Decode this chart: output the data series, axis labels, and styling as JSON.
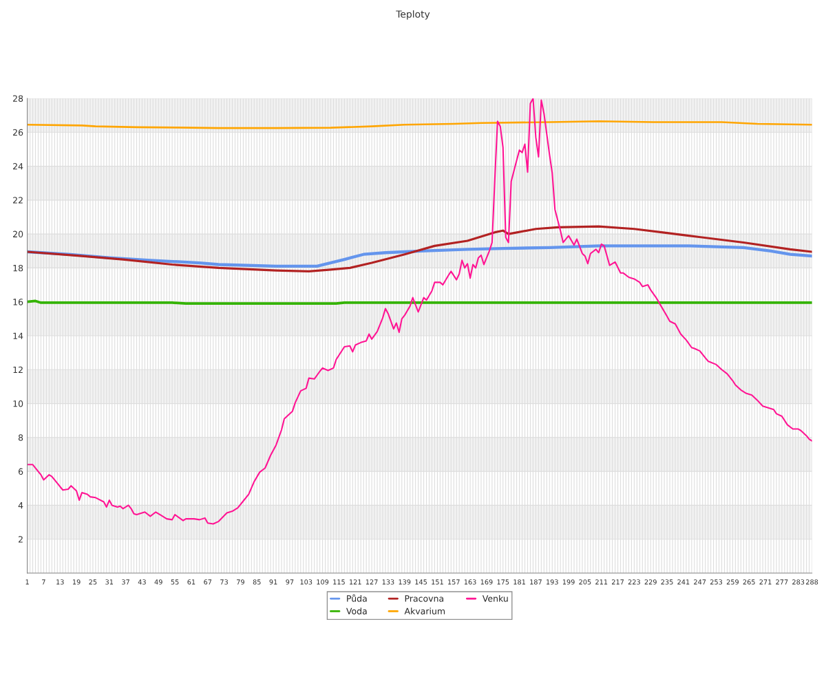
{
  "chart_data": {
    "type": "line",
    "title": "Teploty",
    "xlim": [
      1,
      288
    ],
    "xticks": [
      1,
      {
        "value": 2,
        "label": null
      },
      {
        "value": 3,
        "label": null
      },
      {
        "value": 4,
        "label": null
      },
      {
        "value": 5,
        "label": null
      },
      {
        "value": 6,
        "label": null
      },
      7,
      {
        "value": 8,
        "label": null
      },
      {
        "value": 9,
        "label": null
      },
      {
        "value": 10,
        "label": null
      },
      {
        "value": 11,
        "label": null
      },
      {
        "value": 12,
        "label": null
      },
      13,
      {
        "value": 14,
        "label": null
      },
      {
        "value": 15,
        "label": null
      },
      {
        "value": 16,
        "label": null
      },
      {
        "value": 17,
        "label": null
      },
      {
        "value": 18,
        "label": null
      },
      19,
      {
        "value": 20,
        "label": null
      },
      {
        "value": 21,
        "label": null
      },
      {
        "value": 22,
        "label": null
      },
      {
        "value": 23,
        "label": null
      },
      {
        "value": 24,
        "label": null
      },
      25,
      {
        "value": 26,
        "label": null
      },
      {
        "value": 27,
        "label": null
      },
      {
        "value": 28,
        "label": null
      },
      {
        "value": 29,
        "label": null
      },
      {
        "value": 30,
        "label": null
      },
      31,
      {
        "value": 32,
        "label": null
      },
      {
        "value": 33,
        "label": null
      },
      {
        "value": 34,
        "label": null
      },
      {
        "value": 35,
        "label": null
      },
      {
        "value": 36,
        "label": null
      },
      37,
      {
        "value": 38,
        "label": null
      },
      {
        "value": 39,
        "label": null
      },
      {
        "value": 40,
        "label": null
      },
      {
        "value": 41,
        "label": null
      },
      {
        "value": 42,
        "label": null
      },
      43,
      {
        "value": 44,
        "label": null
      },
      {
        "value": 45,
        "label": null
      },
      {
        "value": 46,
        "label": null
      },
      {
        "value": 47,
        "label": null
      },
      {
        "value": 48,
        "label": null
      },
      49,
      {
        "value": 50,
        "label": null
      },
      {
        "value": 51,
        "label": null
      },
      {
        "value": 52,
        "label": null
      },
      {
        "value": 53,
        "label": null
      },
      {
        "value": 54,
        "label": null
      },
      55,
      {
        "value": 56,
        "label": null
      },
      {
        "value": 57,
        "label": null
      },
      {
        "value": 58,
        "label": null
      },
      {
        "value": 59,
        "label": null
      },
      {
        "value": 60,
        "label": null
      },
      61,
      {
        "value": 62,
        "label": null
      },
      {
        "value": 63,
        "label": null
      },
      {
        "value": 64,
        "label": null
      },
      {
        "value": 65,
        "label": null
      },
      {
        "value": 66,
        "label": null
      },
      67,
      {
        "value": 68,
        "label": null
      },
      {
        "value": 69,
        "label": null
      },
      {
        "value": 70,
        "label": null
      },
      {
        "value": 71,
        "label": null
      },
      {
        "value": 72,
        "label": null
      },
      73,
      {
        "value": 74,
        "label": null
      },
      {
        "value": 75,
        "label": null
      },
      {
        "value": 76,
        "label": null
      },
      {
        "value": 77,
        "label": null
      },
      {
        "value": 78,
        "label": null
      },
      79,
      {
        "value": 80,
        "label": null
      },
      {
        "value": 81,
        "label": null
      },
      {
        "value": 82,
        "label": null
      },
      {
        "value": 83,
        "label": null
      },
      {
        "value": 84,
        "label": null
      },
      85,
      {
        "value": 86,
        "label": null
      },
      {
        "value": 87,
        "label": null
      },
      {
        "value": 88,
        "label": null
      },
      {
        "value": 89,
        "label": null
      },
      {
        "value": 90,
        "label": null
      },
      91,
      {
        "value": 92,
        "label": null
      },
      {
        "value": 93,
        "label": null
      },
      {
        "value": 94,
        "label": null
      },
      {
        "value": 95,
        "label": null
      },
      {
        "value": 96,
        "label": null
      },
      97,
      {
        "value": 98,
        "label": null
      },
      {
        "value": 99,
        "label": null
      },
      {
        "value": 100,
        "label": null
      },
      {
        "value": 101,
        "label": null
      },
      {
        "value": 102,
        "label": null
      },
      103,
      {
        "value": 104,
        "label": null
      },
      {
        "value": 105,
        "label": null
      },
      {
        "value": 106,
        "label": null
      },
      {
        "value": 107,
        "label": null
      },
      {
        "value": 108,
        "label": null
      },
      109,
      {
        "value": 110,
        "label": null
      },
      {
        "value": 111,
        "label": null
      },
      {
        "value": 112,
        "label": null
      },
      {
        "value": 113,
        "label": null
      },
      {
        "value": 114,
        "label": null
      },
      115,
      {
        "value": 116,
        "label": null
      },
      {
        "value": 117,
        "label": null
      },
      {
        "value": 118,
        "label": null
      },
      {
        "value": 119,
        "label": null
      },
      {
        "value": 120,
        "label": null
      },
      121,
      {
        "value": 122,
        "label": null
      },
      {
        "value": 123,
        "label": null
      },
      {
        "value": 124,
        "label": null
      },
      {
        "value": 125,
        "label": null
      },
      {
        "value": 126,
        "label": null
      },
      127,
      {
        "value": 128,
        "label": null
      },
      {
        "value": 129,
        "label": null
      },
      {
        "value": 130,
        "label": null
      },
      {
        "value": 131,
        "label": null
      },
      {
        "value": 132,
        "label": null
      },
      133,
      {
        "value": 134,
        "label": null
      },
      {
        "value": 135,
        "label": null
      },
      {
        "value": 136,
        "label": null
      },
      {
        "value": 137,
        "label": null
      },
      {
        "value": 138,
        "label": null
      },
      139,
      {
        "value": 140,
        "label": null
      },
      {
        "value": 141,
        "label": null
      },
      {
        "value": 142,
        "label": null
      },
      {
        "value": 143,
        "label": null
      },
      {
        "value": 144,
        "label": null
      },
      145,
      {
        "value": 146,
        "label": null
      },
      {
        "value": 147,
        "label": null
      },
      {
        "value": 148,
        "label": null
      },
      {
        "value": 149,
        "label": null
      },
      {
        "value": 150,
        "label": null
      },
      151,
      {
        "value": 152,
        "label": null
      },
      {
        "value": 153,
        "label": null
      },
      {
        "value": 154,
        "label": null
      },
      {
        "value": 155,
        "label": null
      },
      {
        "value": 156,
        "label": null
      },
      157,
      {
        "value": 158,
        "label": null
      },
      {
        "value": 159,
        "label": null
      },
      {
        "value": 160,
        "label": null
      },
      {
        "value": 161,
        "label": null
      },
      {
        "value": 162,
        "label": null
      },
      163,
      {
        "value": 164,
        "label": null
      },
      {
        "value": 165,
        "label": null
      },
      {
        "value": 166,
        "label": null
      },
      {
        "value": 167,
        "label": null
      },
      {
        "value": 168,
        "label": null
      },
      169,
      {
        "value": 170,
        "label": null
      },
      {
        "value": 171,
        "label": null
      },
      {
        "value": 172,
        "label": null
      },
      {
        "value": 173,
        "label": null
      },
      {
        "value": 174,
        "label": null
      },
      175,
      {
        "value": 176,
        "label": null
      },
      {
        "value": 177,
        "label": null
      },
      {
        "value": 178,
        "label": null
      },
      {
        "value": 179,
        "label": null
      },
      {
        "value": 180,
        "label": null
      },
      181,
      {
        "value": 182,
        "label": null
      },
      {
        "value": 183,
        "label": null
      },
      {
        "value": 184,
        "label": null
      },
      {
        "value": 185,
        "label": null
      },
      {
        "value": 186,
        "label": null
      },
      187,
      {
        "value": 188,
        "label": null
      },
      {
        "value": 189,
        "label": null
      },
      {
        "value": 190,
        "label": null
      },
      {
        "value": 191,
        "label": null
      },
      {
        "value": 192,
        "label": null
      },
      193,
      {
        "value": 194,
        "label": null
      },
      {
        "value": 195,
        "label": null
      },
      {
        "value": 196,
        "label": null
      },
      {
        "value": 197,
        "label": null
      },
      {
        "value": 198,
        "label": null
      },
      199,
      {
        "value": 200,
        "label": null
      },
      {
        "value": 201,
        "label": null
      },
      {
        "value": 202,
        "label": null
      },
      {
        "value": 203,
        "label": null
      },
      {
        "value": 204,
        "label": null
      },
      205,
      {
        "value": 206,
        "label": null
      },
      {
        "value": 207,
        "label": null
      },
      {
        "value": 208,
        "label": null
      },
      {
        "value": 209,
        "label": null
      },
      {
        "value": 210,
        "label": null
      },
      211,
      {
        "value": 212,
        "label": null
      },
      {
        "value": 213,
        "label": null
      },
      {
        "value": 214,
        "label": null
      },
      {
        "value": 215,
        "label": null
      },
      {
        "value": 216,
        "label": null
      },
      217,
      {
        "value": 218,
        "label": null
      },
      {
        "value": 219,
        "label": null
      },
      {
        "value": 220,
        "label": null
      },
      {
        "value": 221,
        "label": null
      },
      {
        "value": 222,
        "label": null
      },
      223,
      {
        "value": 224,
        "label": null
      },
      {
        "value": 225,
        "label": null
      },
      {
        "value": 226,
        "label": null
      },
      {
        "value": 227,
        "label": null
      },
      {
        "value": 228,
        "label": null
      },
      229,
      {
        "value": 230,
        "label": null
      },
      {
        "value": 231,
        "label": null
      },
      {
        "value": 232,
        "label": null
      },
      {
        "value": 233,
        "label": null
      },
      {
        "value": 234,
        "label": null
      },
      235,
      {
        "value": 236,
        "label": null
      },
      {
        "value": 237,
        "label": null
      },
      {
        "value": 238,
        "label": null
      },
      {
        "value": 239,
        "label": null
      },
      {
        "value": 240,
        "label": null
      },
      241,
      {
        "value": 242,
        "label": null
      },
      {
        "value": 243,
        "label": null
      },
      {
        "value": 244,
        "label": null
      },
      {
        "value": 245,
        "label": null
      },
      {
        "value": 246,
        "label": null
      },
      247,
      {
        "value": 248,
        "label": null
      },
      {
        "value": 249,
        "label": null
      },
      {
        "value": 250,
        "label": null
      },
      {
        "value": 251,
        "label": null
      },
      {
        "value": 252,
        "label": null
      },
      253,
      {
        "value": 254,
        "label": null
      },
      {
        "value": 255,
        "label": null
      },
      {
        "value": 256,
        "label": null
      },
      {
        "value": 257,
        "label": null
      },
      {
        "value": 258,
        "label": null
      },
      259,
      {
        "value": 260,
        "label": null
      },
      {
        "value": 261,
        "label": null
      },
      {
        "value": 262,
        "label": null
      },
      {
        "value": 263,
        "label": null
      },
      {
        "value": 264,
        "label": null
      },
      265,
      {
        "value": 266,
        "label": null
      },
      {
        "value": 267,
        "label": null
      },
      {
        "value": 268,
        "label": null
      },
      {
        "value": 269,
        "label": null
      },
      {
        "value": 270,
        "label": null
      },
      271,
      {
        "value": 272,
        "label": null
      },
      {
        "value": 273,
        "label": null
      },
      {
        "value": 274,
        "label": null
      },
      {
        "value": 275,
        "label": null
      },
      {
        "value": 276,
        "label": null
      },
      277,
      {
        "value": 278,
        "label": null
      },
      {
        "value": 279,
        "label": null
      },
      {
        "value": 280,
        "label": null
      },
      {
        "value": 281,
        "label": null
      },
      {
        "value": 282,
        "label": null
      },
      283,
      {
        "value": 284,
        "label": null
      },
      {
        "value": 285,
        "label": null
      },
      {
        "value": 286,
        "label": null
      },
      {
        "value": 287,
        "label": null
      },
      288
    ],
    "ylim": [
      0,
      28
    ],
    "yticks": [
      {
        "value": 0,
        "label": null
      },
      2,
      4,
      6,
      8,
      10,
      12,
      14,
      16,
      18,
      20,
      22,
      24,
      26,
      28
    ],
    "grid": true,
    "legend": "bottom",
    "marker": "none",
    "line_style": "solid",
    "series": [
      {
        "name": "Půda",
        "color": "#6495ed",
        "x": [
          1,
          16,
          31,
          46,
          64,
          71,
          92,
          107,
          117,
          124,
          132,
          145,
          162,
          175,
          192,
          210,
          243,
          253,
          263,
          273,
          280,
          288
        ],
        "values": [
          18.95,
          18.8,
          18.6,
          18.45,
          18.3,
          18.2,
          18.1,
          18.1,
          18.5,
          18.8,
          18.9,
          19.0,
          19.1,
          19.15,
          19.2,
          19.3,
          19.3,
          19.25,
          19.2,
          19.0,
          18.8,
          18.7
        ]
      },
      {
        "name": "Voda",
        "color": "#33b300",
        "x": [
          1,
          4,
          6,
          54,
          59,
          92,
          114,
          117,
          142,
          167,
          218,
          288
        ],
        "values": [
          16.0,
          16.05,
          15.95,
          15.95,
          15.9,
          15.9,
          15.9,
          15.95,
          15.95,
          15.95,
          15.95,
          15.95
        ]
      },
      {
        "name": "Pracovna",
        "color": "#b22222",
        "x": [
          1,
          21,
          36,
          54,
          71,
          92,
          104,
          112,
          119,
          127,
          139,
          150,
          162,
          172,
          175,
          177,
          187,
          195,
          210,
          223,
          233,
          243,
          263,
          280,
          288
        ],
        "values": [
          18.95,
          18.7,
          18.5,
          18.2,
          18.0,
          17.85,
          17.8,
          17.9,
          18.0,
          18.3,
          18.8,
          19.3,
          19.6,
          20.1,
          20.2,
          20.0,
          20.3,
          20.4,
          20.45,
          20.3,
          20.1,
          19.9,
          19.5,
          19.1,
          18.95
        ]
      },
      {
        "name": "Akvarium",
        "color": "#ffa500",
        "x": [
          1,
          21,
          26,
          41,
          56,
          71,
          92,
          112,
          127,
          139,
          157,
          167,
          192,
          210,
          230,
          255,
          268,
          288
        ],
        "values": [
          26.45,
          26.4,
          26.35,
          26.3,
          26.28,
          26.25,
          26.25,
          26.27,
          26.35,
          26.45,
          26.5,
          26.55,
          26.6,
          26.65,
          26.6,
          26.6,
          26.5,
          26.45
        ]
      },
      {
        "name": "Venku",
        "color": "#ff1493",
        "x": [
          1,
          3,
          6,
          7,
          9,
          10,
          12,
          14,
          16,
          17,
          19,
          20,
          21,
          23,
          24,
          26,
          29,
          30,
          31,
          32,
          34,
          35,
          36,
          38,
          39,
          40,
          41,
          44,
          46,
          48,
          50,
          52,
          54,
          55,
          58,
          59,
          62,
          64,
          66,
          67,
          69,
          71,
          74,
          76,
          78,
          80,
          82,
          84,
          86,
          88,
          90,
          92,
          94,
          95,
          98,
          99,
          101,
          103,
          104,
          106,
          108,
          109,
          111,
          113,
          114,
          117,
          119,
          120,
          121,
          123,
          125,
          126,
          127,
          129,
          131,
          132,
          133,
          135,
          136,
          137,
          138,
          139,
          141,
          142,
          144,
          146,
          147,
          149,
          150,
          152,
          153,
          155,
          156,
          158,
          159,
          160,
          161,
          162,
          163,
          164,
          165,
          166,
          167,
          168,
          170,
          171,
          172,
          173,
          174,
          175,
          176,
          177,
          178,
          180,
          181,
          182,
          183,
          184,
          185,
          186,
          187,
          188,
          189,
          190,
          192,
          193,
          194,
          196,
          197,
          199,
          201,
          202,
          204,
          205,
          206,
          207,
          209,
          210,
          211,
          212,
          214,
          216,
          218,
          219,
          221,
          223,
          225,
          226,
          228,
          229,
          231,
          233,
          235,
          236,
          238,
          240,
          242,
          244,
          245,
          247,
          249,
          250,
          253,
          255,
          257,
          259,
          260,
          262,
          264,
          266,
          268,
          270,
          272,
          274,
          275,
          277,
          279,
          281,
          283,
          284,
          286,
          287,
          288
        ],
        "values": [
          6.4,
          6.4,
          5.8,
          5.5,
          5.8,
          5.7,
          5.3,
          4.9,
          4.95,
          5.15,
          4.85,
          4.3,
          4.75,
          4.65,
          4.5,
          4.45,
          4.2,
          3.9,
          4.3,
          4.0,
          3.9,
          3.95,
          3.8,
          4.0,
          3.8,
          3.5,
          3.45,
          3.6,
          3.35,
          3.6,
          3.4,
          3.2,
          3.15,
          3.45,
          3.1,
          3.2,
          3.2,
          3.15,
          3.25,
          2.95,
          2.9,
          3.05,
          3.55,
          3.65,
          3.85,
          4.25,
          4.65,
          5.4,
          5.95,
          6.2,
          6.95,
          7.55,
          8.45,
          9.1,
          9.55,
          10.05,
          10.75,
          10.9,
          11.5,
          11.45,
          11.9,
          12.1,
          11.95,
          12.1,
          12.6,
          13.35,
          13.4,
          13.05,
          13.45,
          13.6,
          13.7,
          14.1,
          13.8,
          14.25,
          15.05,
          15.6,
          15.3,
          14.4,
          14.75,
          14.2,
          15.0,
          15.2,
          15.75,
          16.25,
          15.4,
          16.25,
          16.1,
          16.65,
          17.15,
          17.15,
          17.0,
          17.55,
          17.8,
          17.3,
          17.65,
          18.45,
          18.0,
          18.25,
          17.4,
          18.2,
          18.0,
          18.6,
          18.75,
          18.2,
          19.0,
          19.5,
          23.2,
          26.65,
          26.35,
          25.1,
          19.8,
          19.5,
          23.1,
          24.35,
          24.95,
          24.8,
          25.3,
          23.65,
          27.7,
          28.0,
          25.7,
          24.55,
          27.9,
          27.1,
          24.7,
          23.6,
          21.45,
          20.2,
          19.5,
          19.9,
          19.35,
          19.7,
          18.85,
          18.7,
          18.25,
          18.85,
          19.1,
          18.9,
          19.4,
          19.3,
          18.15,
          18.35,
          17.7,
          17.7,
          17.45,
          17.35,
          17.15,
          16.9,
          17.0,
          16.7,
          16.25,
          15.7,
          15.15,
          14.85,
          14.7,
          14.1,
          13.75,
          13.3,
          13.25,
          13.1,
          12.7,
          12.5,
          12.3,
          12.0,
          11.75,
          11.35,
          11.1,
          10.8,
          10.6,
          10.5,
          10.2,
          9.85,
          9.75,
          9.65,
          9.4,
          9.25,
          8.75,
          8.5,
          8.5,
          8.4,
          8.1,
          7.9,
          7.8
        ]
      }
    ]
  }
}
